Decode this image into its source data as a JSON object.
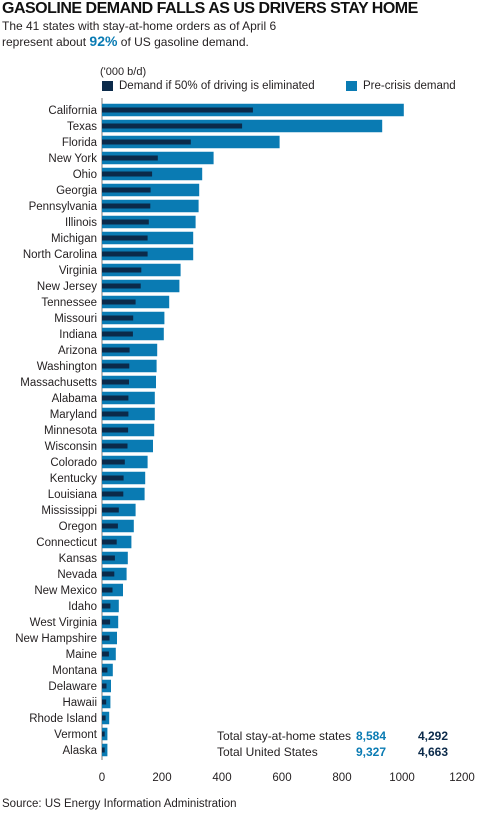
{
  "title": "GASOLINE DEMAND FALLS AS US DRIVERS STAY HOME",
  "subtitle": {
    "line1": "The 41 states with stay-at-home orders as of April 6",
    "line2_pre": "represent about ",
    "highlight": "92%",
    "line2_post": " of US gasoline demand."
  },
  "source": "Source: US Energy Information Administration",
  "colors": {
    "pre_crisis": "#0a7bb3",
    "demand_50": "#0b2a4a"
  },
  "totals": [
    {
      "label": "Total stay-at-home states",
      "pre_crisis": "8,584",
      "half": "4,292"
    },
    {
      "label": "Total United States",
      "pre_crisis": "9,327",
      "half": "4,663"
    }
  ],
  "chart_data": {
    "type": "bar",
    "orientation": "horizontal",
    "unit_label": "('000 b/d)",
    "xlim": [
      0,
      1200
    ],
    "xticks": [
      "0",
      "200",
      "400",
      "600",
      "800",
      "1000",
      "1200"
    ],
    "legend_position": "top-right",
    "categories": [
      "California",
      "Texas",
      "Florida",
      "New York",
      "Ohio",
      "Georgia",
      "Pennsylvania",
      "Illinois",
      "Michigan",
      "North Carolina",
      "Virginia",
      "New Jersey",
      "Tennessee",
      "Missouri",
      "Indiana",
      "Arizona",
      "Washington",
      "Massachusetts",
      "Alabama",
      "Maryland",
      "Minnesota",
      "Wisconsin",
      "Colorado",
      "Kentucky",
      "Louisiana",
      "Mississippi",
      "Oregon",
      "Connecticut",
      "Kansas",
      "Nevada",
      "New Mexico",
      "Idaho",
      "West Virginia",
      "New Hampshire",
      "Maine",
      "Montana",
      "Delaware",
      "Hawaii",
      "Rhode Island",
      "Vermont",
      "Alaska"
    ],
    "series": [
      {
        "name": "Demand if 50% of driving is eliminated",
        "color": "#0b2a4a",
        "values": [
          503,
          467,
          296,
          186,
          167,
          162,
          161,
          156,
          152,
          152,
          131,
          129,
          112,
          104,
          103,
          92,
          91,
          90,
          88,
          88,
          87,
          85,
          76,
          72,
          71,
          56,
          53,
          49,
          43,
          41,
          35,
          28,
          27,
          25,
          23,
          18,
          15,
          14,
          12,
          9,
          9
        ]
      },
      {
        "name": "Pre-crisis demand",
        "color": "#0a7bb3",
        "values": [
          1006,
          934,
          592,
          372,
          334,
          324,
          322,
          312,
          304,
          304,
          262,
          258,
          224,
          208,
          206,
          184,
          182,
          180,
          176,
          176,
          174,
          170,
          152,
          144,
          142,
          112,
          106,
          98,
          86,
          82,
          70,
          56,
          54,
          50,
          46,
          36,
          30,
          28,
          24,
          18,
          18
        ]
      }
    ]
  }
}
